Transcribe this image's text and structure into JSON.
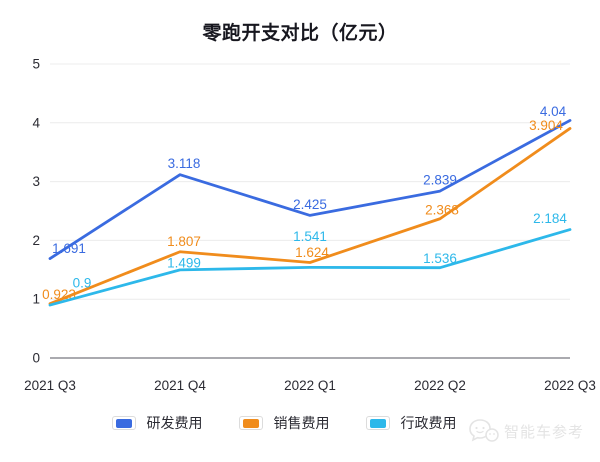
{
  "title": "零跑开支对比（亿元）",
  "chart_data": {
    "type": "line",
    "title": "零跑开支对比（亿元）",
    "categories": [
      "2021 Q3",
      "2021 Q4",
      "2022 Q1",
      "2022 Q2",
      "2022 Q3"
    ],
    "series": [
      {
        "name": "研发费用",
        "color": "#3a6be0",
        "values": [
          1.691,
          3.118,
          2.425,
          2.839,
          4.04
        ]
      },
      {
        "name": "销售费用",
        "color": "#f08c1c",
        "values": [
          0.923,
          1.807,
          1.624,
          2.368,
          3.904
        ]
      },
      {
        "name": "行政费用",
        "color": "#2db8ea",
        "values": [
          0.9,
          1.499,
          1.541,
          1.536,
          2.184
        ]
      }
    ],
    "ylabel": "",
    "xlabel": "",
    "ylim": [
      0,
      5
    ],
    "yticks": [
      0,
      1,
      2,
      3,
      4,
      5
    ],
    "grid": true,
    "legend_position": "bottom",
    "colors": {
      "grid_line": "#ececec",
      "zero_axis_line": "#55555f",
      "tick_text": "#2b2b33",
      "title_text": "#17171f"
    }
  },
  "watermark": {
    "text": "智能车参考",
    "logo": "chat-faces-logo"
  }
}
